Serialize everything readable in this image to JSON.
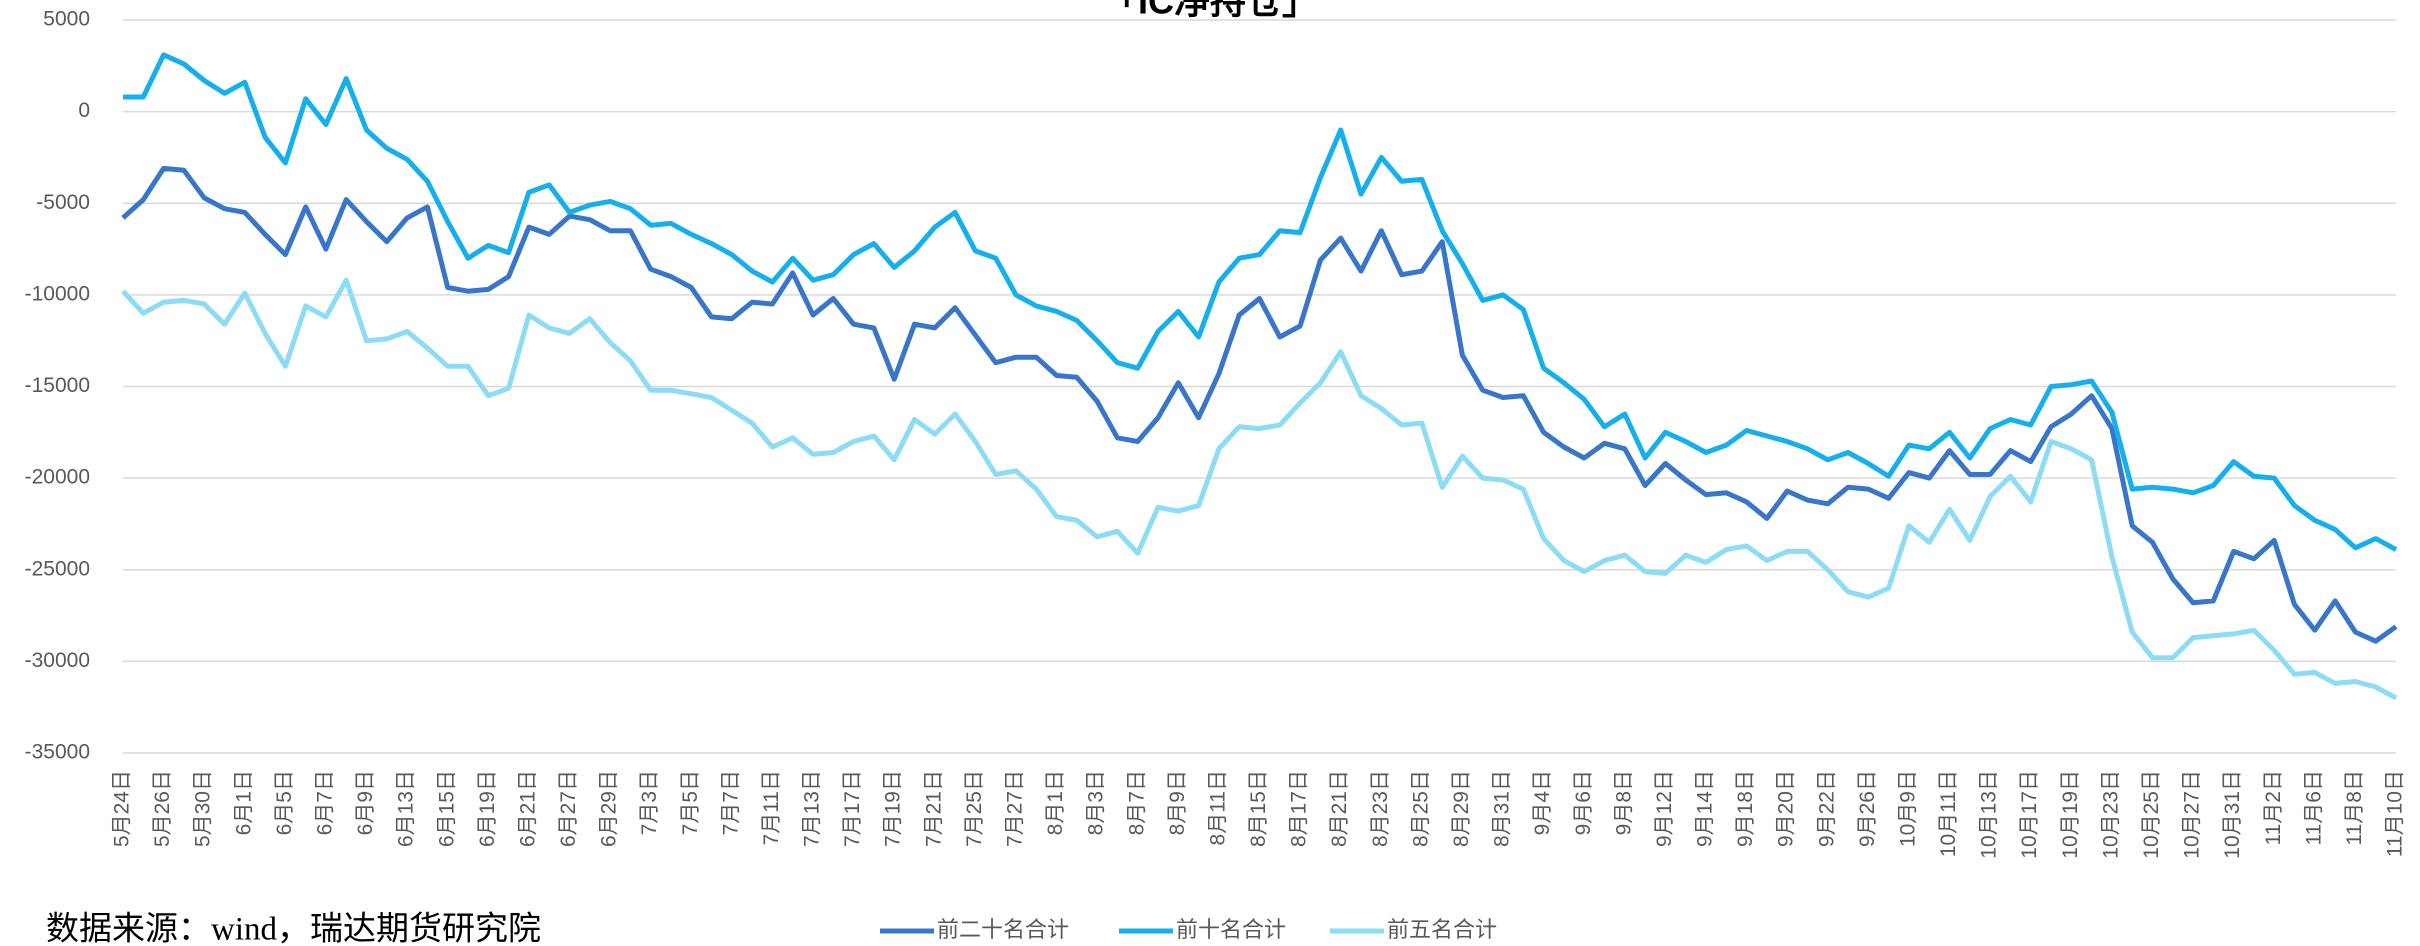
{
  "chart_data": {
    "type": "line",
    "title": "「IC净持仓」",
    "source": "数据来源：wind，瑞达期货研究院",
    "categories": [
      "5月24日",
      null,
      "5月26日",
      null,
      "5月30日",
      null,
      "6月1日",
      null,
      "6月5日",
      null,
      "6月7日",
      null,
      "6月9日",
      null,
      "6月13日",
      null,
      "6月15日",
      null,
      "6月19日",
      null,
      "6月21日",
      null,
      "6月27日",
      null,
      "6月29日",
      null,
      "7月3日",
      null,
      "7月5日",
      null,
      "7月7日",
      null,
      "7月11日",
      null,
      "7月13日",
      null,
      "7月17日",
      null,
      "7月19日",
      null,
      "7月21日",
      null,
      "7月25日",
      null,
      "7月27日",
      null,
      "8月1日",
      null,
      "8月3日",
      null,
      "8月7日",
      null,
      "8月9日",
      null,
      "8月11日",
      null,
      "8月15日",
      null,
      "8月17日",
      null,
      "8月21日",
      null,
      "8月23日",
      null,
      "8月25日",
      null,
      "8月29日",
      null,
      "8月31日",
      null,
      "9月4日",
      null,
      "9月6日",
      null,
      "9月8日",
      null,
      "9月12日",
      null,
      "9月14日",
      null,
      "9月18日",
      null,
      "9月20日",
      null,
      "9月22日",
      null,
      "9月26日",
      null,
      "10月9日",
      null,
      "10月11日",
      null,
      "10月13日",
      null,
      "10月17日",
      null,
      "10月19日",
      null,
      "10月23日",
      null,
      "10月25日",
      null,
      "10月27日",
      null,
      "10月31日",
      null,
      "11月2日",
      null,
      "11月6日",
      null,
      "11月8日",
      null,
      "11月10日"
    ],
    "series": [
      {
        "name": "前二十名合计",
        "color": "#3876c9",
        "values": [
          -5800,
          -4800,
          -3100,
          -3200,
          -4700,
          -5300,
          -5500,
          -6700,
          -7800,
          -5200,
          -7500,
          -4800,
          -6000,
          -7100,
          -5800,
          -5200,
          -9600,
          -9800,
          -9700,
          -9000,
          -6300,
          -6700,
          -5700,
          -5900,
          -6500,
          -6500,
          -8600,
          -9000,
          -9600,
          -11200,
          -11300,
          -10400,
          -10500,
          -8800,
          -11100,
          -10200,
          -11600,
          -11800,
          -14600,
          -11600,
          -11800,
          -10700,
          -12200,
          -13700,
          -13400,
          -13400,
          -14400,
          -14500,
          -15800,
          -17800,
          -18000,
          -16700,
          -14800,
          -16700,
          -14300,
          -11100,
          -10200,
          -12300,
          -11700,
          -8100,
          -6900,
          -8700,
          -6500,
          -8900,
          -8700,
          -7100,
          -13300,
          -15200,
          -15600,
          -15500,
          -17500,
          -18300,
          -18900,
          -18100,
          -18400,
          -20400,
          -19200,
          -20100,
          -20900,
          -20800,
          -21300,
          -22200,
          -20700,
          -21200,
          -21400,
          -20500,
          -20600,
          -21100,
          -19700,
          -20000,
          -18500,
          -19800,
          -19800,
          -18500,
          -19100,
          -17200,
          -16500,
          -15500,
          -17300,
          -22600,
          -23500,
          -25500,
          -26800,
          -26700,
          -24000,
          -24400,
          -23400,
          -26900,
          -28300,
          -26700,
          -28400,
          -28900,
          -28100
        ]
      },
      {
        "name": "前十名合计",
        "color": "#15b0ec",
        "values": [
          800,
          800,
          3100,
          2600,
          1700,
          1000,
          1600,
          -1400,
          -2800,
          700,
          -700,
          1800,
          -1000,
          -2000,
          -2600,
          -3800,
          -6000,
          -8000,
          -7300,
          -7700,
          -4400,
          -4000,
          -5500,
          -5100,
          -4900,
          -5300,
          -6200,
          -6100,
          -6700,
          -7200,
          -7800,
          -8700,
          -9300,
          -8000,
          -9200,
          -8900,
          -7800,
          -7200,
          -8500,
          -7600,
          -6300,
          -5500,
          -7600,
          -8000,
          -10000,
          -10600,
          -10900,
          -11400,
          -12500,
          -13700,
          -14000,
          -12000,
          -10900,
          -12300,
          -9300,
          -8000,
          -7800,
          -6500,
          -6600,
          -3600,
          -1000,
          -4500,
          -2500,
          -3800,
          -3700,
          -6500,
          -8300,
          -10300,
          -10000,
          -10800,
          -14000,
          -14800,
          -15700,
          -17200,
          -16500,
          -18900,
          -17500,
          -18000,
          -18600,
          -18200,
          -17400,
          -17700,
          -18000,
          -18400,
          -19000,
          -18600,
          -19200,
          -19900,
          -18200,
          -18400,
          -17500,
          -18900,
          -17300,
          -16800,
          -17100,
          -15000,
          -14900,
          -14700,
          -16400,
          -20600,
          -20500,
          -20600,
          -20800,
          -20400,
          -19100,
          -19900,
          -20000,
          -21500,
          -22300,
          -22800,
          -23800,
          -23300,
          -23900
        ]
      },
      {
        "name": "前五名合计",
        "color": "#8ddcf5",
        "values": [
          -9800,
          -11000,
          -10400,
          -10300,
          -10500,
          -11600,
          -9900,
          -12100,
          -13900,
          -10600,
          -11200,
          -9200,
          -12500,
          -12400,
          -12000,
          -12900,
          -13900,
          -13900,
          -15500,
          -15100,
          -11100,
          -11800,
          -12100,
          -11300,
          -12600,
          -13600,
          -15200,
          -15200,
          -15400,
          -15600,
          -16300,
          -17000,
          -18300,
          -17800,
          -18700,
          -18600,
          -18000,
          -17700,
          -19000,
          -16800,
          -17600,
          -16500,
          -18000,
          -19800,
          -19600,
          -20600,
          -22100,
          -22300,
          -23200,
          -22900,
          -24100,
          -21600,
          -21800,
          -21500,
          -18400,
          -17200,
          -17300,
          -17100,
          -15900,
          -14800,
          -13100,
          -15500,
          -16200,
          -17100,
          -17000,
          -20500,
          -18800,
          -20000,
          -20100,
          -20600,
          -23300,
          -24500,
          -25100,
          -24500,
          -24200,
          -25100,
          -25200,
          -24200,
          -24600,
          -23900,
          -23700,
          -24500,
          -24000,
          -24000,
          -25000,
          -26200,
          -26500,
          -26000,
          -22600,
          -23500,
          -21700,
          -23400,
          -21000,
          -19900,
          -21300,
          -18000,
          -18400,
          -19000,
          -24300,
          -28400,
          -29800,
          -29800,
          -28700,
          -28600,
          -28500,
          -28300,
          -29400,
          -30700,
          -30600,
          -31200,
          -31100,
          -31400,
          -32000
        ]
      }
    ],
    "ylim": [
      -35000,
      5000
    ],
    "yticks": [
      5000,
      0,
      -5000,
      -10000,
      -15000,
      -20000,
      -25000,
      -30000,
      -35000
    ],
    "grid": true,
    "legend": "bottom"
  }
}
